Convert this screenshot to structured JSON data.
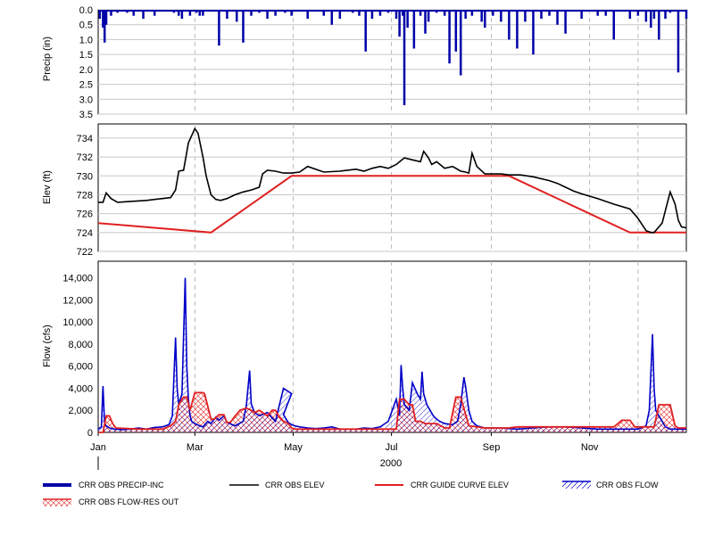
{
  "chart_data": [
    {
      "type": "bar",
      "ylabel": "Precip (in)",
      "ylim": [
        0,
        3.5
      ],
      "y_inverted": true,
      "ytick_labels": [
        "0.0",
        "0.5",
        "1.0",
        "1.5",
        "2.0",
        "2.5",
        "3.0",
        "3.5"
      ],
      "grid": true,
      "series": [
        {
          "name": "CRR OBS PRECIP-INC",
          "color": "#0000a8",
          "x": [
            1,
            3,
            4,
            5,
            8,
            12,
            18,
            22,
            28,
            35,
            42,
            47,
            50,
            52,
            57,
            61,
            63,
            65,
            70,
            75,
            80,
            86,
            90,
            95,
            100,
            105,
            110,
            116,
            120,
            130,
            140,
            145,
            150,
            158,
            162,
            166,
            170,
            175,
            180,
            185,
            187,
            189,
            190,
            192,
            196,
            200,
            203,
            205,
            210,
            215,
            218,
            222,
            225,
            228,
            232,
            238,
            240,
            245,
            250,
            255,
            260,
            265,
            270,
            275,
            280,
            285,
            290,
            300,
            310,
            315,
            320,
            330,
            335,
            340,
            343,
            345,
            348,
            352,
            355,
            360,
            365
          ],
          "values": [
            0.3,
            0.6,
            1.1,
            0.5,
            0.2,
            0.1,
            0.1,
            0.2,
            0.3,
            0.2,
            0.05,
            0.1,
            0.2,
            0.3,
            0.2,
            0.1,
            0.2,
            0.2,
            0.05,
            1.2,
            0.3,
            0.4,
            1.1,
            0.2,
            0.1,
            0.3,
            0.2,
            0.1,
            0.2,
            0.3,
            0.2,
            0.5,
            0.3,
            0.1,
            0.2,
            1.4,
            0.3,
            0.2,
            0.1,
            0.3,
            0.9,
            0.2,
            3.2,
            0.6,
            1.3,
            0.2,
            0.8,
            0.4,
            0.1,
            0.2,
            1.8,
            1.4,
            2.2,
            0.3,
            0.2,
            0.4,
            0.6,
            0.2,
            0.4,
            1.0,
            1.3,
            0.4,
            1.5,
            0.3,
            0.2,
            0.5,
            0.8,
            0.3,
            0.2,
            0.2,
            1.0,
            0.3,
            0.2,
            0.4,
            0.6,
            0.3,
            1.0,
            0.3,
            0.1,
            2.1,
            0.3
          ]
        }
      ]
    },
    {
      "type": "line",
      "ylabel": "Elev (ft)",
      "ylim": [
        722,
        735.5
      ],
      "ytick_labels": [
        "734",
        "732",
        "730",
        "728",
        "726",
        "724",
        "722"
      ],
      "grid": true,
      "series": [
        {
          "name": "CRR OBS ELEV",
          "color": "#000000",
          "x": [
            0,
            3,
            5,
            8,
            12,
            20,
            30,
            35,
            40,
            45,
            48,
            50,
            53,
            56,
            60,
            62,
            65,
            67,
            70,
            73,
            76,
            80,
            85,
            90,
            95,
            100,
            102,
            105,
            110,
            115,
            120,
            125,
            130,
            140,
            150,
            160,
            165,
            170,
            175,
            180,
            185,
            190,
            195,
            200,
            202,
            205,
            207,
            210,
            215,
            220,
            225,
            228,
            230,
            232,
            235,
            240,
            245,
            250,
            255,
            262,
            270,
            280,
            285,
            290,
            295,
            300,
            310,
            320,
            330,
            335,
            340,
            343,
            345,
            350,
            355,
            358,
            360,
            362,
            365
          ],
          "values": [
            727.2,
            727.2,
            728.2,
            727.6,
            727.2,
            727.3,
            727.4,
            727.5,
            727.6,
            727.7,
            728.5,
            730.5,
            730.6,
            733.5,
            735.0,
            734.5,
            732.0,
            730.0,
            728.0,
            727.5,
            727.4,
            727.6,
            728.0,
            728.3,
            728.5,
            728.8,
            730.2,
            730.6,
            730.5,
            730.3,
            730.3,
            730.4,
            731.0,
            730.4,
            730.5,
            730.7,
            730.5,
            730.8,
            731.0,
            730.8,
            731.2,
            731.9,
            731.7,
            731.5,
            732.6,
            731.9,
            731.2,
            731.5,
            730.8,
            731.0,
            730.5,
            730.4,
            730.3,
            732.4,
            731.0,
            730.2,
            730.2,
            730.2,
            730.1,
            730.1,
            729.9,
            729.5,
            729.2,
            728.8,
            728.4,
            728.1,
            727.6,
            727.0,
            726.5,
            725.5,
            724.2,
            724.0,
            724.0,
            725.0,
            728.3,
            727.0,
            725.3,
            724.6,
            724.5
          ]
        },
        {
          "name": "CRR GUIDE CURVE ELEV",
          "color": "#e02020",
          "x": [
            0,
            70,
            120,
            255,
            330,
            365
          ],
          "values": [
            725.0,
            724.0,
            730.0,
            730.0,
            724.0,
            724.0
          ]
        }
      ]
    },
    {
      "type": "area",
      "ylabel": "Flow (cfs)",
      "ylim": [
        0,
        15500
      ],
      "ytick_labels": [
        "14,000",
        "12,000",
        "10,000",
        "8,000",
        "6,000",
        "4,000",
        "2,000",
        "0"
      ],
      "xtick_labels": [
        "Jan",
        "Mar",
        "May",
        "Jul",
        "Sep",
        "Nov"
      ],
      "x_axis_year": "2000",
      "grid": true,
      "series": [
        {
          "name": "CRR OBS FLOW",
          "color": "#0000c8",
          "x": [
            0,
            2,
            3,
            4,
            5,
            7,
            10,
            15,
            20,
            25,
            30,
            35,
            40,
            44,
            46,
            48,
            49,
            50,
            52,
            54,
            55,
            56,
            57,
            58,
            60,
            63,
            65,
            68,
            70,
            73,
            75,
            78,
            80,
            85,
            90,
            92,
            94,
            95,
            97,
            100,
            105,
            108,
            110,
            115,
            120,
            115,
            118,
            120,
            122,
            125,
            130,
            135,
            140,
            145,
            150,
            160,
            165,
            170,
            175,
            180,
            183,
            185,
            187,
            188,
            189,
            190,
            193,
            195,
            198,
            200,
            201,
            202,
            204,
            206,
            208,
            210,
            212,
            215,
            220,
            223,
            225,
            227,
            228,
            230,
            232,
            235,
            240,
            250,
            260,
            270,
            280,
            290,
            300,
            310,
            320,
            325,
            330,
            335,
            340,
            342,
            344,
            345,
            346,
            348,
            350,
            352,
            355,
            360,
            365
          ],
          "values": [
            300,
            500,
            4200,
            800,
            600,
            400,
            300,
            250,
            300,
            400,
            300,
            450,
            500,
            700,
            1500,
            8600,
            4000,
            2500,
            3500,
            14000,
            6000,
            3000,
            1500,
            1000,
            800,
            600,
            500,
            1000,
            800,
            1400,
            1100,
            1500,
            900,
            600,
            1000,
            2500,
            5600,
            2600,
            1800,
            1500,
            1800,
            1300,
            1000,
            4000,
            3500,
            1600,
            900,
            700,
            600,
            500,
            400,
            350,
            400,
            500,
            300,
            300,
            400,
            350,
            500,
            1000,
            2200,
            3000,
            1500,
            6100,
            4000,
            2500,
            2000,
            4500,
            3500,
            3000,
            5500,
            3500,
            2500,
            2000,
            1500,
            1200,
            1000,
            800,
            700,
            1000,
            2500,
            5000,
            4200,
            2000,
            1000,
            600,
            400,
            400,
            300,
            400,
            500,
            500,
            400,
            300,
            300,
            300,
            300,
            300,
            600,
            2000,
            8900,
            4000,
            2000,
            1500,
            1000,
            500,
            300,
            300,
            300
          ]
        },
        {
          "name": "CRR OBS FLOW-RES OUT",
          "color": "#e02020",
          "x": [
            0,
            3,
            5,
            7,
            9,
            11,
            25,
            40,
            45,
            48,
            50,
            52,
            53,
            55,
            57,
            60,
            62,
            65,
            66,
            70,
            72,
            75,
            78,
            80,
            82,
            85,
            88,
            92,
            95,
            97,
            100,
            105,
            108,
            110,
            112,
            115,
            118,
            120,
            122,
            125,
            130,
            170,
            180,
            183,
            185,
            187,
            190,
            193,
            195,
            197,
            200,
            203,
            205,
            210,
            215,
            218,
            222,
            225,
            230,
            240,
            255,
            260,
            270,
            290,
            300,
            320,
            325,
            330,
            333,
            335,
            340,
            345,
            348,
            350,
            355,
            358,
            360,
            365
          ],
          "values": [
            0,
            0,
            1500,
            1500,
            800,
            400,
            300,
            300,
            600,
            1000,
            2500,
            3000,
            3200,
            3200,
            2000,
            3600,
            3600,
            3600,
            3500,
            1200,
            1200,
            1600,
            1600,
            900,
            900,
            1500,
            2000,
            2200,
            2000,
            1800,
            2000,
            1500,
            2000,
            2000,
            1500,
            1000,
            800,
            400,
            300,
            300,
            300,
            300,
            300,
            300,
            300,
            3000,
            3000,
            2500,
            2500,
            1000,
            1000,
            800,
            800,
            800,
            400,
            400,
            3200,
            3200,
            600,
            400,
            400,
            500,
            500,
            500,
            500,
            500,
            1100,
            1100,
            500,
            500,
            500,
            500,
            2500,
            2500,
            2500,
            600,
            400,
            400
          ]
        }
      ]
    }
  ],
  "x_axis": {
    "tick_labels": [
      "Jan",
      "Mar",
      "May",
      "Jul",
      "Sep",
      "Nov"
    ],
    "year": "2000"
  },
  "legend": [
    {
      "label": "CRR OBS PRECIP-INC",
      "color": "#0000a8",
      "style": "thick-line"
    },
    {
      "label": "CRR OBS ELEV",
      "color": "#000000",
      "style": "line"
    },
    {
      "label": "CRR GUIDE CURVE ELEV",
      "color": "#e02020",
      "style": "line"
    },
    {
      "label": "CRR OBS FLOW",
      "color": "#0000c8",
      "style": "hatch"
    },
    {
      "label": "CRR OBS FLOW-RES OUT",
      "color": "#e02020",
      "style": "hatch"
    }
  ]
}
